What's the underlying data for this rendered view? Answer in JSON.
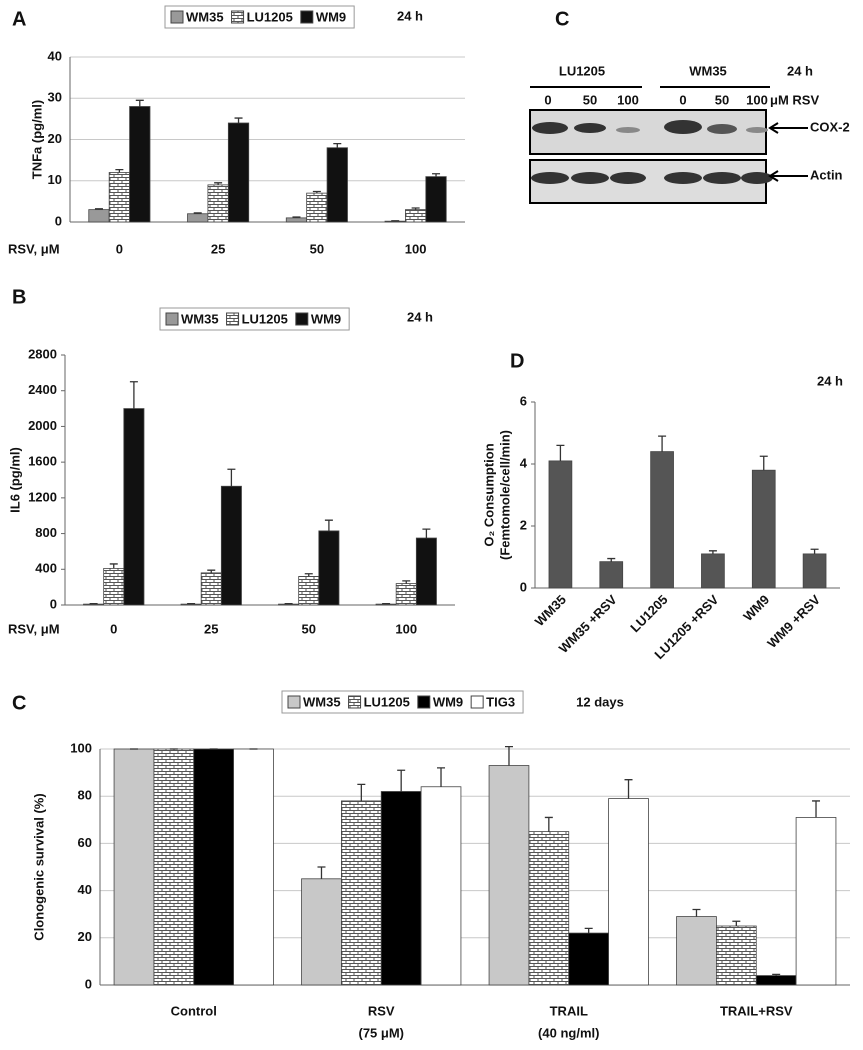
{
  "chart_data": [
    {
      "type": "bar",
      "panel": "A",
      "y_label": "TNFa (pg/ml)",
      "x_label": "RSV, μM",
      "annotation": "24 h",
      "grid": true,
      "categories": [
        "0",
        "25",
        "50",
        "100"
      ],
      "series": [
        {
          "name": "WM35",
          "color": "#999999",
          "values": [
            3,
            2,
            1,
            0.2
          ],
          "errors": [
            0.2,
            0.2,
            0.2,
            0.1
          ]
        },
        {
          "name": "LU1205",
          "color": "#ffffff",
          "pattern": "brick",
          "values": [
            12,
            9,
            7,
            3
          ],
          "errors": [
            0.7,
            0.5,
            0.4,
            0.4
          ]
        },
        {
          "name": "WM9",
          "color": "#111111",
          "values": [
            28,
            24,
            18,
            11
          ],
          "errors": [
            1.5,
            1.2,
            1,
            0.7
          ]
        }
      ],
      "ylim": [
        0,
        40
      ],
      "yticks": [
        0,
        10,
        20,
        30,
        40
      ]
    },
    {
      "type": "bar",
      "panel": "B",
      "y_label": "IL6 (pg/ml)",
      "x_label": "RSV, μM",
      "annotation": "24 h",
      "grid": false,
      "categories": [
        "0",
        "25",
        "50",
        "100"
      ],
      "series": [
        {
          "name": "WM35",
          "color": "#999999",
          "values": [
            10,
            10,
            10,
            10
          ],
          "errors": [
            5,
            5,
            5,
            5
          ]
        },
        {
          "name": "LU1205",
          "color": "#ffffff",
          "pattern": "brick",
          "values": [
            410,
            360,
            320,
            240
          ],
          "errors": [
            50,
            30,
            30,
            30
          ]
        },
        {
          "name": "WM9",
          "color": "#111111",
          "values": [
            2200,
            1330,
            830,
            750
          ],
          "errors": [
            300,
            190,
            120,
            100
          ]
        }
      ],
      "ylim": [
        0,
        2800
      ],
      "yticks": [
        0,
        400,
        800,
        1200,
        1600,
        2000,
        2400,
        2800
      ]
    },
    {
      "type": "bar",
      "panel": "D",
      "y_label": [
        "O₂ Consumption",
        "(Femtomole/cell/min)"
      ],
      "annotation": "24 h",
      "grid": false,
      "categories": [
        "WM35",
        "WM35 +RSV",
        "LU1205",
        "LU1205 +RSV",
        "WM9",
        "WM9 +RSV"
      ],
      "color": "#555555",
      "values": [
        4.1,
        0.85,
        4.4,
        1.1,
        3.8,
        1.1
      ],
      "errors": [
        0.5,
        0.1,
        0.5,
        0.1,
        0.45,
        0.15
      ],
      "ylim": [
        0,
        6
      ],
      "yticks": [
        0,
        2,
        4,
        6
      ]
    },
    {
      "type": "bar",
      "panel": "C",
      "y_label": "Clonogenic survival (%)",
      "annotation": "12 days",
      "grid": true,
      "categories": [
        "Control",
        "RSV",
        "TRAIL",
        "TRAIL+RSV"
      ],
      "category_notes": [
        null,
        "(75 μM)",
        "(40 ng/ml)",
        null
      ],
      "series": [
        {
          "name": "WM35",
          "color": "#c8c8c8",
          "values": [
            100,
            45,
            93,
            29
          ],
          "errors": [
            0,
            5,
            8,
            3
          ]
        },
        {
          "name": "LU1205",
          "color": "#ffffff",
          "pattern": "brick",
          "values": [
            100,
            78,
            65,
            25
          ],
          "errors": [
            0,
            7,
            6,
            2
          ]
        },
        {
          "name": "WM9",
          "color": "#000000",
          "values": [
            100,
            82,
            22,
            4
          ],
          "errors": [
            0,
            9,
            2,
            0.5
          ]
        },
        {
          "name": "TIG3",
          "color": "#ffffff",
          "values": [
            100,
            84,
            79,
            71
          ],
          "errors": [
            0,
            8,
            8,
            7
          ]
        }
      ],
      "ylim": [
        0,
        100
      ],
      "yticks": [
        0,
        20,
        40,
        60,
        80,
        100
      ]
    }
  ],
  "blot": {
    "panel": "C",
    "groups": [
      "LU1205",
      "WM35"
    ],
    "annotation": "24 h",
    "lanes": [
      "0",
      "50",
      "100",
      "0",
      "50",
      "100"
    ],
    "lane_unit": "μM RSV",
    "bands": [
      "COX-2",
      "Actin"
    ]
  }
}
